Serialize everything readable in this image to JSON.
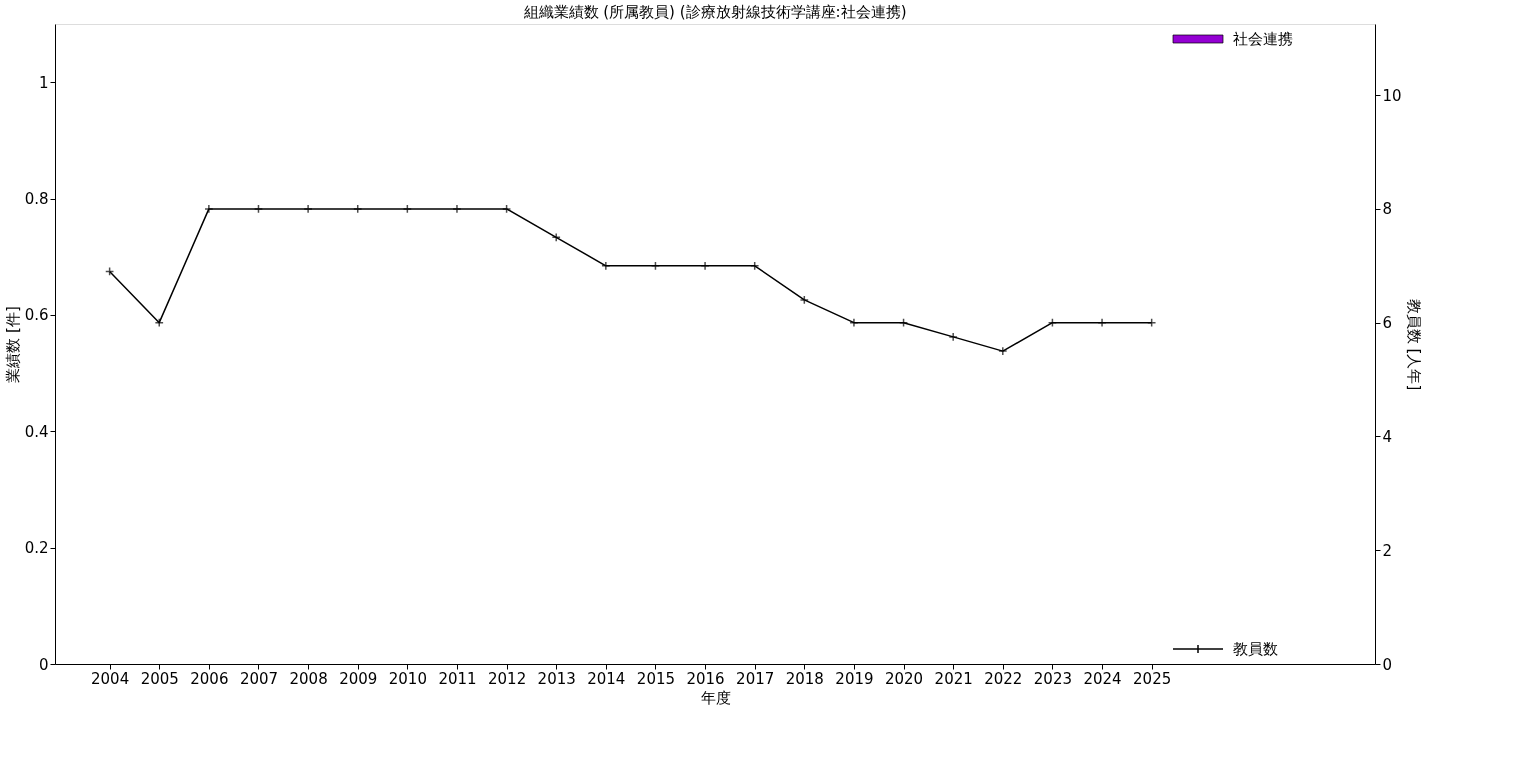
{
  "chart_data": {
    "type": "bar",
    "title": "組織業績数 (所属教員) (診療放射線技術学講座:社会連携)",
    "xlabel": "年度",
    "ylabel": "業績数 [件]",
    "y2label": "教員数 [人年]",
    "x": [
      2004,
      2005,
      2006,
      2007,
      2008,
      2009,
      2010,
      2011,
      2012,
      2013,
      2014,
      2015,
      2016,
      2017,
      2018,
      2019,
      2020,
      2021,
      2022,
      2023,
      2024,
      2025
    ],
    "xlim": [
      2003,
      2029.4
    ],
    "xticks": [
      2004,
      2005,
      2006,
      2007,
      2008,
      2009,
      2010,
      2011,
      2012,
      2013,
      2014,
      2015,
      2016,
      2017,
      2018,
      2019,
      2020,
      2021,
      2022,
      2023,
      2024,
      2025
    ],
    "ylim": [
      0,
      1.1
    ],
    "yticks": [
      0,
      0.2,
      0.4,
      0.6,
      0.8,
      1
    ],
    "y2lim": [
      0,
      11.25
    ],
    "y2ticks": [
      0,
      2,
      4,
      6,
      8,
      10
    ],
    "series": [
      {
        "name": "社会連携",
        "color": "#9400d3",
        "values": [
          0,
          0,
          0,
          0,
          0,
          0,
          0,
          0,
          0,
          0,
          0,
          0,
          0,
          0,
          0,
          0,
          0,
          0,
          0,
          0,
          0,
          0
        ]
      },
      {
        "name": "教員数",
        "type": "line",
        "axis": "y2",
        "color": "#000000",
        "values": [
          6.9,
          6.0,
          8.0,
          8.0,
          8.0,
          8.0,
          8.0,
          8.0,
          8.0,
          7.5,
          7.0,
          7.0,
          7.0,
          7.0,
          6.4,
          6.0,
          6.0,
          5.75,
          5.5,
          6.0,
          6.0,
          6.0
        ]
      }
    ],
    "legend": "right",
    "marker": "cross",
    "grid": false
  }
}
